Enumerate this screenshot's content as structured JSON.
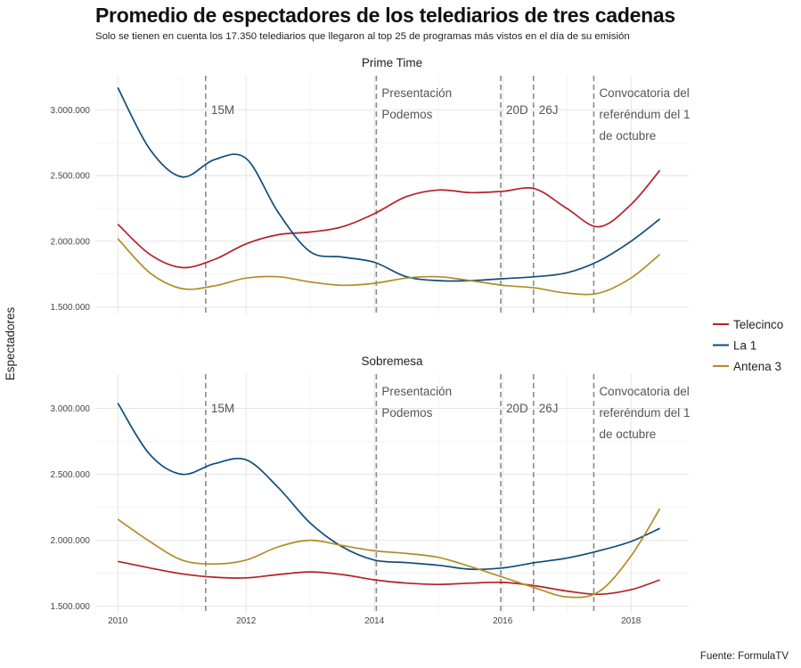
{
  "header": {
    "title": "Promedio de espectadores de los telediarios de tres cadenas",
    "subtitle": "Solo se tienen en cuenta los 17.350 telediarios que llegaron al top 25 de programas más vistos en el día de su emisión",
    "source": "Fuente: FormulaTV"
  },
  "chart_data": {
    "type": "line",
    "ylabel": "Espectadores",
    "xlim": [
      2009.65,
      2018.9
    ],
    "ylim": [
      1450000,
      3260000
    ],
    "x_ticks": [
      2010,
      2012,
      2014,
      2016,
      2018
    ],
    "x_tick_labels": [
      "2010",
      "2012",
      "2014",
      "2016",
      "2018"
    ],
    "y_ticks": [
      1500000,
      2000000,
      2500000,
      3000000
    ],
    "y_tick_labels": [
      "1.500.000",
      "2.000.000",
      "2.500.000",
      "3.000.000"
    ],
    "legend_position": "right",
    "series_meta": [
      {
        "name": "Telecinco",
        "color": "#b5202a"
      },
      {
        "name": "La 1",
        "color": "#0f4d7a"
      },
      {
        "name": "Antena 3",
        "color": "#b08d25"
      }
    ],
    "events": [
      {
        "x": 2011.37,
        "lines": [
          "15M"
        ]
      },
      {
        "x": 2014.03,
        "lines": [
          "Presentación",
          "Podemos"
        ]
      },
      {
        "x": 2015.97,
        "lines": [
          "20D"
        ]
      },
      {
        "x": 2016.48,
        "lines": [
          "26J"
        ]
      },
      {
        "x": 2017.42,
        "lines": [
          "Convocatoria del",
          "referéndum del 1",
          "de octubre"
        ]
      }
    ],
    "panels": [
      {
        "title": "Prime Time",
        "series": [
          {
            "name": "Telecinco",
            "x": [
              2010,
              2010.5,
              2011,
              2011.5,
              2012,
              2012.5,
              2013,
              2013.5,
              2014,
              2014.5,
              2015,
              2015.5,
              2016,
              2016.5,
              2017,
              2017.5,
              2018,
              2018.45
            ],
            "values": [
              2130000,
              1900000,
              1800000,
              1860000,
              1980000,
              2050000,
              2070000,
              2110000,
              2210000,
              2340000,
              2390000,
              2370000,
              2380000,
              2400000,
              2250000,
              2110000,
              2280000,
              2540000
            ]
          },
          {
            "name": "La 1",
            "x": [
              2010,
              2010.5,
              2011,
              2011.5,
              2012,
              2012.5,
              2013,
              2013.5,
              2014,
              2014.5,
              2015,
              2015.5,
              2016,
              2016.5,
              2017,
              2017.5,
              2018,
              2018.45
            ],
            "values": [
              3170000,
              2700000,
              2490000,
              2620000,
              2630000,
              2220000,
              1920000,
              1880000,
              1840000,
              1730000,
              1700000,
              1700000,
              1715000,
              1730000,
              1760000,
              1850000,
              2000000,
              2170000
            ]
          },
          {
            "name": "Antena 3",
            "x": [
              2010,
              2010.5,
              2011,
              2011.5,
              2012,
              2012.5,
              2013,
              2013.5,
              2014,
              2014.5,
              2015,
              2015.5,
              2016,
              2016.5,
              2017,
              2017.5,
              2018,
              2018.45
            ],
            "values": [
              2020000,
              1760000,
              1640000,
              1660000,
              1720000,
              1730000,
              1690000,
              1665000,
              1680000,
              1720000,
              1730000,
              1700000,
              1665000,
              1645000,
              1605000,
              1605000,
              1720000,
              1900000
            ]
          }
        ]
      },
      {
        "title": "Sobremesa",
        "series": [
          {
            "name": "Telecinco",
            "x": [
              2010,
              2010.5,
              2011,
              2011.5,
              2012,
              2012.5,
              2013,
              2013.5,
              2014,
              2014.5,
              2015,
              2015.5,
              2016,
              2016.5,
              2017,
              2017.5,
              2018,
              2018.45
            ],
            "values": [
              1840000,
              1790000,
              1745000,
              1720000,
              1715000,
              1740000,
              1760000,
              1740000,
              1700000,
              1675000,
              1665000,
              1675000,
              1680000,
              1655000,
              1615000,
              1590000,
              1625000,
              1700000
            ]
          },
          {
            "name": "La 1",
            "x": [
              2010,
              2010.5,
              2011,
              2011.5,
              2012,
              2012.5,
              2013,
              2013.5,
              2014,
              2014.5,
              2015,
              2015.5,
              2016,
              2016.5,
              2017,
              2017.5,
              2018,
              2018.45
            ],
            "values": [
              3040000,
              2650000,
              2500000,
              2580000,
              2610000,
              2400000,
              2130000,
              1950000,
              1850000,
              1830000,
              1810000,
              1780000,
              1790000,
              1830000,
              1865000,
              1920000,
              1990000,
              2090000
            ]
          },
          {
            "name": "Antena 3",
            "x": [
              2010,
              2010.5,
              2011,
              2011.5,
              2012,
              2012.5,
              2013,
              2013.5,
              2014,
              2014.5,
              2015,
              2015.5,
              2016,
              2016.5,
              2017,
              2017.5,
              2018,
              2018.45
            ],
            "values": [
              2160000,
              1990000,
              1850000,
              1820000,
              1850000,
              1950000,
              2000000,
              1960000,
              1920000,
              1900000,
              1870000,
              1800000,
              1720000,
              1640000,
              1570000,
              1610000,
              1880000,
              2240000
            ]
          }
        ]
      }
    ]
  }
}
